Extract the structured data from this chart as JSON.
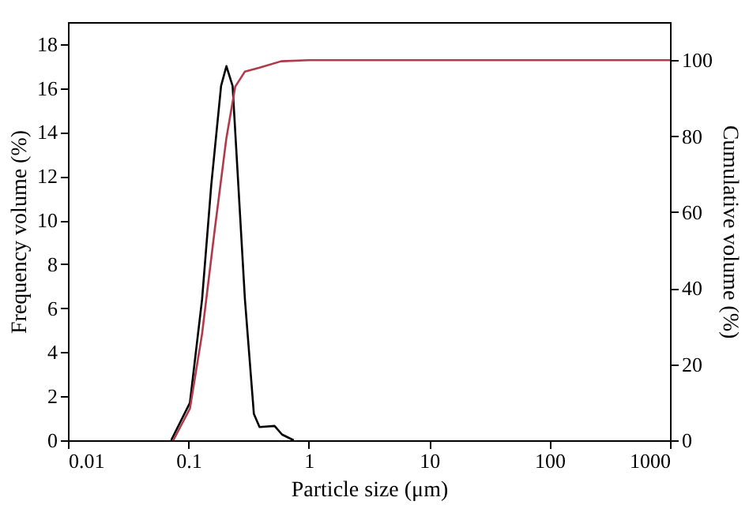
{
  "chart_data": {
    "type": "line",
    "xlabel": "Particle size (μm)",
    "ylabel": "Frequency volume (%)",
    "y2label": "Cumulative volume (%)",
    "log": "x",
    "xlim": [
      0.01,
      1000
    ],
    "xticks": [
      0.01,
      0.1,
      1,
      10,
      100,
      1000
    ],
    "ylim": [
      0,
      19
    ],
    "yticks": [
      0,
      2,
      4,
      6,
      8,
      10,
      12,
      14,
      16,
      18
    ],
    "y2lim": [
      0,
      110
    ],
    "y2ticks": [
      0,
      20,
      40,
      60,
      80,
      100
    ],
    "grid": false,
    "marker": "none",
    "line_style": "solid",
    "series": [
      {
        "color": "#000000",
        "x": [
          0.072,
          0.103,
          0.13,
          0.155,
          0.187,
          0.207,
          0.233,
          0.26,
          0.295,
          0.35,
          0.39,
          0.52,
          0.6,
          0.75
        ],
        "values": [
          0,
          1.7,
          6.4,
          11.6,
          16.1,
          17,
          16.1,
          11.6,
          6.4,
          1.2,
          0.6,
          0.65,
          0.26,
          0
        ]
      },
      {
        "color": "#b03a4a",
        "axis": "y2",
        "x": [
          0.075,
          0.103,
          0.13,
          0.165,
          0.207,
          0.245,
          0.295,
          0.39,
          0.59,
          1,
          10,
          100,
          1000
        ],
        "values": [
          0,
          8.3,
          28,
          55,
          79.5,
          93,
          97,
          98,
          99.7,
          100,
          100,
          100,
          100
        ]
      }
    ]
  }
}
